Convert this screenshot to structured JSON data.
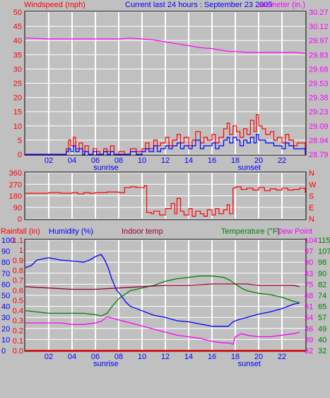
{
  "header": {
    "windspeed_label": "Windspeed (mph)",
    "title": "Current last 24 hours : September 23 2005",
    "barometer_label": "arometer (in.)"
  },
  "x_axis": {
    "hour_labels": [
      "02",
      "04",
      "06",
      "08",
      "10",
      "12",
      "14",
      "16",
      "18",
      "20",
      "22"
    ],
    "sunrise_label": "sunrise",
    "sunset_label": "sunset"
  },
  "colors": {
    "background": "#c0c0c0",
    "grid": "#ffffff",
    "wind": "#ff0000",
    "gust": "#0000ff",
    "barometer": "#ff00ff",
    "humidity": "#0000ff",
    "indoor": "#990033",
    "temperature": "#008000",
    "dewpoint": "#ff00ff",
    "rain": "#ff0000",
    "title": "#0000ff"
  },
  "chart_data": [
    {
      "type": "line",
      "name": "wind-barometer",
      "x_unit": "hour",
      "x_range": [
        0,
        24
      ],
      "left_axis": {
        "label": "Windspeed (mph)",
        "ticks": [
          0,
          5,
          10,
          15,
          20,
          25,
          30,
          35,
          40,
          45,
          50
        ],
        "ylim": [
          0,
          50
        ]
      },
      "right_axis": {
        "label": "arometer (in.)",
        "ticks": [
          "28.79",
          "28.94",
          "29.09",
          "29.23",
          "29.38",
          "29.53",
          "29.68",
          "29.83",
          "29.97",
          "30.12",
          "30.27"
        ],
        "ylim": [
          28.79,
          30.27
        ]
      },
      "series": [
        {
          "name": "Windspeed",
          "color": "#ff0000",
          "x": [
            0,
            3.5,
            3.7,
            3.9,
            4.1,
            4.3,
            4.6,
            4.9,
            5.1,
            5.4,
            5.8,
            6.1,
            6.4,
            6.7,
            7.0,
            7.3,
            7.6,
            8.0,
            8.5,
            9.0,
            9.5,
            10.0,
            10.3,
            10.6,
            11.0,
            11.3,
            11.6,
            12.0,
            12.3,
            12.6,
            13.0,
            13.3,
            13.6,
            14.0,
            14.3,
            14.6,
            15.0,
            15.3,
            15.6,
            16.0,
            16.3,
            16.6,
            17.0,
            17.3,
            17.5,
            17.8,
            18.1,
            18.4,
            18.7,
            19.0,
            19.3,
            19.6,
            19.8,
            20.0,
            20.3,
            20.6,
            21.0,
            21.3,
            21.6,
            22.0,
            22.3,
            22.6,
            23.0,
            23.3,
            24.0
          ],
          "y": [
            0,
            2,
            5,
            3,
            6,
            2,
            4,
            1,
            3,
            0,
            2,
            1,
            0,
            2,
            1,
            3,
            0,
            1,
            0,
            2,
            1,
            2,
            4,
            2,
            5,
            3,
            4,
            6,
            3,
            5,
            7,
            4,
            6,
            3,
            5,
            8,
            4,
            6,
            5,
            7,
            4,
            6,
            9,
            11,
            7,
            10,
            8,
            6,
            9,
            7,
            12,
            8,
            14,
            10,
            9,
            7,
            8,
            5,
            6,
            4,
            7,
            5,
            3,
            4,
            0
          ]
        },
        {
          "name": "Gust",
          "color": "#0000ff",
          "x": [
            0,
            3.5,
            3.7,
            3.9,
            4.1,
            4.3,
            4.6,
            4.9,
            5.1,
            5.4,
            5.8,
            6.1,
            6.4,
            6.7,
            7.0,
            7.3,
            7.6,
            8.0,
            8.5,
            9.0,
            9.5,
            10.0,
            10.3,
            10.6,
            11.0,
            11.3,
            11.6,
            12.0,
            12.3,
            12.6,
            13.0,
            13.3,
            13.6,
            14.0,
            14.3,
            14.6,
            15.0,
            15.3,
            15.6,
            16.0,
            16.3,
            16.6,
            17.0,
            17.3,
            17.5,
            17.8,
            18.1,
            18.4,
            18.7,
            19.0,
            19.3,
            19.6,
            19.8,
            20.0,
            20.3,
            20.6,
            21.0,
            21.3,
            21.6,
            22.0,
            22.3,
            22.6,
            23.0,
            23.3,
            24.0
          ],
          "y": [
            0,
            1,
            2,
            1,
            3,
            1,
            2,
            0,
            1,
            0,
            1,
            0,
            0,
            1,
            0,
            1,
            0,
            0,
            0,
            1,
            0,
            1,
            2,
            1,
            3,
            1,
            2,
            3,
            2,
            3,
            4,
            2,
            3,
            2,
            3,
            5,
            2,
            3,
            3,
            4,
            2,
            3,
            5,
            6,
            4,
            6,
            5,
            3,
            5,
            4,
            6,
            4,
            7,
            5,
            5,
            4,
            4,
            3,
            3,
            2,
            4,
            3,
            2,
            2,
            0
          ]
        },
        {
          "name": "Barometer",
          "color": "#ff00ff",
          "axis": "right",
          "x": [
            0,
            2,
            4,
            6,
            8,
            9,
            10,
            11,
            12,
            13,
            14,
            15,
            16,
            17,
            17.5,
            18,
            19,
            20,
            21,
            22,
            23,
            24
          ],
          "y": [
            30.0,
            29.99,
            29.99,
            29.99,
            29.99,
            30.0,
            29.99,
            29.98,
            29.96,
            29.94,
            29.92,
            29.9,
            29.89,
            29.87,
            29.86,
            29.86,
            29.85,
            29.85,
            29.85,
            29.85,
            29.85,
            29.84
          ]
        }
      ],
      "annotations": {
        "sunrise_hour": 6.9,
        "sunset_hour": 19.2
      }
    },
    {
      "type": "line",
      "name": "wind-direction",
      "x_range": [
        0,
        24
      ],
      "left_axis": {
        "ticks": [
          0,
          90,
          180,
          270,
          360
        ],
        "ylim": [
          0,
          360
        ]
      },
      "right_axis": {
        "ticks": [
          "N",
          "E",
          "S",
          "W",
          "N"
        ]
      },
      "series": [
        {
          "name": "Direction",
          "color": "#ff0000",
          "x": [
            0,
            1,
            2,
            3,
            4,
            4.5,
            5,
            5.5,
            6,
            7,
            8,
            8.5,
            9,
            9.5,
            10,
            10.2,
            10.4,
            10.8,
            11,
            11.5,
            12,
            12.5,
            12.8,
            13,
            13.3,
            13.6,
            14,
            14.3,
            14.6,
            15,
            15.3,
            15.6,
            16,
            16.3,
            16.6,
            17,
            17.3,
            17.5,
            17.8,
            18,
            18.5,
            19,
            19.5,
            20,
            20.5,
            21,
            21.5,
            22,
            22.5,
            23,
            23.5,
            24
          ],
          "y": [
            200,
            200,
            205,
            200,
            205,
            195,
            205,
            200,
            205,
            210,
            205,
            245,
            250,
            245,
            245,
            260,
            50,
            40,
            60,
            30,
            80,
            120,
            40,
            160,
            60,
            30,
            80,
            20,
            60,
            40,
            20,
            70,
            30,
            80,
            40,
            70,
            110,
            40,
            240,
            250,
            230,
            240,
            225,
            245,
            220,
            235,
            225,
            240,
            225,
            230,
            240,
            205
          ]
        }
      ]
    },
    {
      "type": "line",
      "name": "humidity-temperature-rain",
      "x_range": [
        0,
        24
      ],
      "axes": {
        "rainfall": {
          "label": "Rainfall (in)",
          "ticks": [
            "0.0",
            "0.1",
            "0.2",
            "0.3",
            "0.4",
            "0.5",
            "0.6",
            "0.7",
            "0.8",
            "0.9",
            "1",
            "1.1"
          ],
          "ylim": [
            0,
            1.1
          ]
        },
        "humidity": {
          "label": "Humidity (%)",
          "ticks": [
            0,
            10,
            20,
            30,
            40,
            50,
            60,
            70,
            80,
            90,
            100
          ],
          "ylim": [
            0,
            100
          ]
        },
        "indoor": {
          "label": "Indoor temp"
        },
        "temperature": {
          "label": "Temperature (°F)",
          "ticks": [
            32,
            40,
            49,
            57,
            65,
            74,
            82,
            90,
            98,
            107,
            115
          ],
          "ylim": [
            32,
            115
          ]
        },
        "dewpoint": {
          "label": "Dew Point",
          "ticks": [
            32,
            39,
            46,
            54,
            61,
            68,
            75,
            83,
            90,
            97,
            104
          ],
          "ylim": [
            32,
            104
          ]
        }
      },
      "series": [
        {
          "name": "Humidity",
          "color": "#0000ff",
          "axis": "humidity",
          "x": [
            0,
            0.5,
            1,
            2,
            3,
            4,
            5,
            5.5,
            6,
            6.5,
            6.8,
            7.1,
            7.4,
            7.8,
            8.2,
            8.6,
            9,
            9.5,
            10,
            11,
            12,
            13,
            14,
            15,
            16,
            17,
            17.4,
            17.8,
            18.3,
            19,
            20,
            21,
            22,
            22.5,
            23,
            23.5
          ],
          "y": [
            75,
            77,
            82,
            84,
            82,
            81,
            80,
            82,
            85,
            87,
            82,
            75,
            65,
            55,
            50,
            44,
            40,
            38,
            36,
            32,
            30,
            27,
            26,
            24,
            22,
            22,
            22,
            26,
            28,
            30,
            33,
            35,
            38,
            40,
            42,
            43
          ]
        },
        {
          "name": "Temperature",
          "color": "#008000",
          "axis": "temperature",
          "x": [
            0,
            1,
            2,
            3,
            4,
            5,
            6,
            6.5,
            7,
            7.5,
            8,
            8.5,
            9,
            10,
            11,
            12,
            13,
            14,
            15,
            16,
            17,
            17.5,
            18,
            18.5,
            19,
            20,
            21,
            22,
            23,
            23.5
          ],
          "y": [
            62,
            61,
            60,
            60,
            60,
            60,
            59,
            58,
            60,
            66,
            71,
            74,
            77,
            79,
            81,
            84,
            86,
            87,
            88,
            88,
            87,
            85,
            82,
            79,
            77,
            75,
            74,
            72,
            69,
            68
          ]
        },
        {
          "name": "Dew Point",
          "color": "#ff00ff",
          "axis": "dewpoint",
          "x": [
            0,
            1,
            2,
            3,
            4,
            5,
            6,
            6.5,
            7,
            7.5,
            8,
            9,
            10,
            11,
            12,
            13,
            14,
            15,
            16,
            17,
            17.5,
            17.8,
            18,
            18.5,
            19,
            20,
            21,
            22,
            23,
            23.5
          ],
          "y": [
            50,
            50,
            50,
            50,
            49,
            49,
            50,
            51,
            54,
            53,
            52,
            50,
            48,
            46,
            44,
            42,
            41,
            40,
            38,
            37,
            37,
            36,
            41,
            43,
            42,
            41,
            41,
            42,
            43,
            44
          ]
        },
        {
          "name": "Indoor temp",
          "color": "#990033",
          "axis": "temperature",
          "x": [
            0,
            2,
            4,
            6,
            8,
            10,
            12,
            14,
            16,
            18,
            19,
            20,
            22,
            23,
            23.5
          ],
          "y": [
            80,
            79,
            78,
            78,
            79,
            80,
            81,
            81,
            82,
            82,
            82,
            81,
            81,
            81,
            80
          ]
        },
        {
          "name": "Rainfall",
          "color": "#ff0000",
          "axis": "rainfall",
          "x": [
            0,
            24
          ],
          "y": [
            0,
            0
          ]
        }
      ],
      "annotations": {
        "sunrise_hour": 6.9,
        "sunset_hour": 19.2
      }
    }
  ]
}
